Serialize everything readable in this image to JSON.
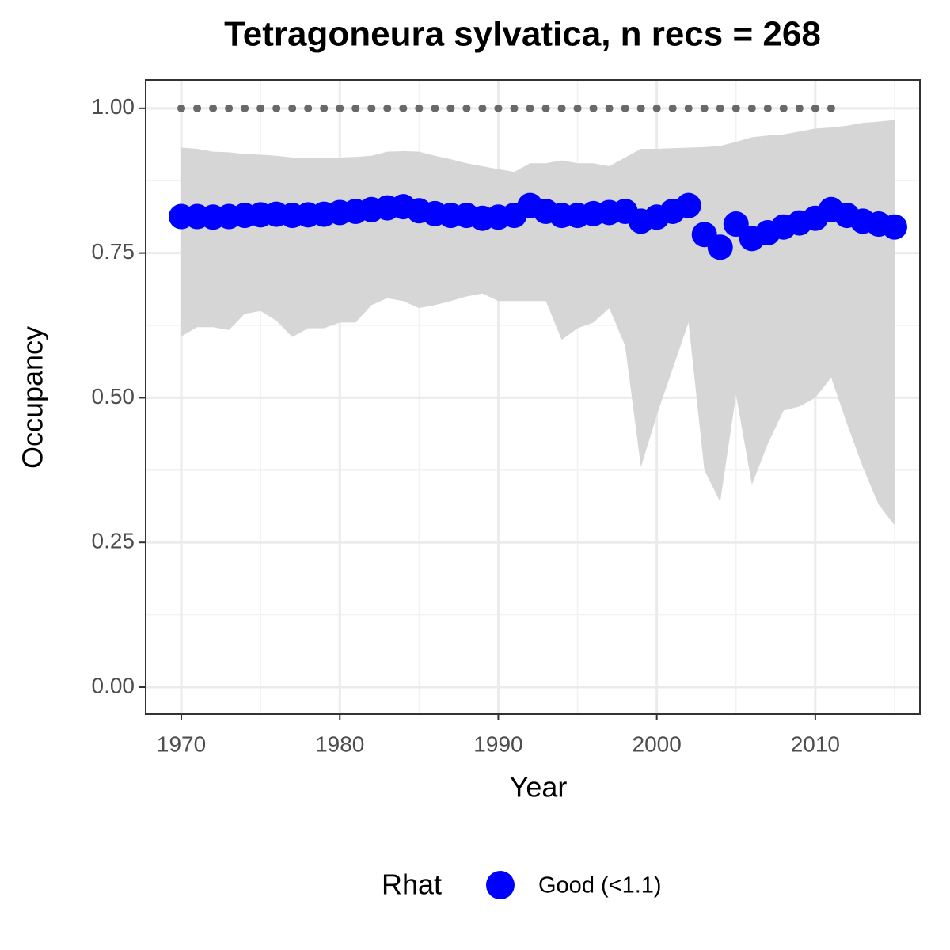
{
  "chart_data": {
    "type": "line",
    "title": "Tetragoneura sylvatica, n recs = 268",
    "x_label": "Year",
    "y_label": "Occupancy",
    "x": [
      1970,
      1971,
      1972,
      1973,
      1974,
      1975,
      1976,
      1977,
      1978,
      1979,
      1980,
      1981,
      1982,
      1983,
      1984,
      1985,
      1986,
      1987,
      1988,
      1989,
      1990,
      1991,
      1992,
      1993,
      1994,
      1995,
      1996,
      1997,
      1998,
      1999,
      2000,
      2001,
      2002,
      2003,
      2004,
      2005,
      2006,
      2007,
      2008,
      2009,
      2010,
      2011,
      2012,
      2013,
      2014,
      2015
    ],
    "series": [
      {
        "name": "Good (<1.1)",
        "color": "#0000ff",
        "values": [
          0.813,
          0.813,
          0.812,
          0.813,
          0.815,
          0.816,
          0.817,
          0.815,
          0.816,
          0.817,
          0.82,
          0.822,
          0.825,
          0.828,
          0.83,
          0.823,
          0.818,
          0.815,
          0.815,
          0.81,
          0.812,
          0.815,
          0.832,
          0.822,
          0.815,
          0.815,
          0.818,
          0.82,
          0.822,
          0.805,
          0.812,
          0.822,
          0.832,
          0.782,
          0.76,
          0.8,
          0.775,
          0.785,
          0.795,
          0.802,
          0.81,
          0.825,
          0.815,
          0.805,
          0.8,
          0.795
        ]
      }
    ],
    "band": {
      "upper": [
        0.932,
        0.93,
        0.925,
        0.924,
        0.921,
        0.92,
        0.918,
        0.915,
        0.915,
        0.915,
        0.915,
        0.916,
        0.918,
        0.925,
        0.926,
        0.925,
        0.918,
        0.912,
        0.905,
        0.9,
        0.895,
        0.89,
        0.905,
        0.905,
        0.91,
        0.905,
        0.905,
        0.9,
        0.915,
        0.93,
        0.93,
        0.931,
        0.932,
        0.933,
        0.935,
        0.942,
        0.95,
        0.953,
        0.955,
        0.96,
        0.965,
        0.967,
        0.97,
        0.975,
        0.977,
        0.98
      ],
      "lower": [
        0.606,
        0.622,
        0.622,
        0.617,
        0.645,
        0.65,
        0.633,
        0.605,
        0.62,
        0.62,
        0.63,
        0.63,
        0.66,
        0.672,
        0.667,
        0.655,
        0.66,
        0.667,
        0.675,
        0.68,
        0.667,
        0.667,
        0.667,
        0.667,
        0.6,
        0.62,
        0.63,
        0.655,
        0.59,
        0.38,
        0.47,
        0.55,
        0.63,
        0.375,
        0.32,
        0.505,
        0.35,
        0.42,
        0.478,
        0.485,
        0.5,
        0.535,
        0.455,
        0.38,
        0.315,
        0.28
      ],
      "color": "#d6d6d6"
    },
    "reference": {
      "color": "#696969",
      "x": [
        1970,
        1971,
        1972,
        1973,
        1974,
        1975,
        1976,
        1977,
        1978,
        1979,
        1980,
        1981,
        1982,
        1983,
        1984,
        1985,
        1986,
        1987,
        1988,
        1989,
        1990,
        1991,
        1992,
        1993,
        1994,
        1995,
        1996,
        1997,
        1998,
        1999,
        2000,
        2001,
        2002,
        2003,
        2004,
        2005,
        2006,
        2007,
        2008,
        2009,
        2010,
        2011
      ],
      "values": [
        1,
        1,
        1,
        1,
        1,
        1,
        1,
        1,
        1,
        1,
        1,
        1,
        1,
        1,
        1,
        1,
        1,
        1,
        1,
        1,
        1,
        1,
        1,
        1,
        1,
        1,
        1,
        1,
        1,
        1,
        1,
        1,
        1,
        1,
        1,
        1,
        1,
        1,
        1,
        1,
        1,
        1
      ]
    },
    "xlim": [
      1967.75,
      2016.6
    ],
    "ylim": [
      -0.0465,
      1.049
    ],
    "xticks": [
      1970,
      1980,
      1990,
      2000,
      2010
    ],
    "yticks": [
      {
        "value": 0,
        "label": "0.00"
      },
      {
        "value": 0.25,
        "label": "0.25"
      },
      {
        "value": 0.5,
        "label": "0.50"
      },
      {
        "value": 0.75,
        "label": "0.75"
      },
      {
        "value": 1,
        "label": "1.00"
      }
    ],
    "grid": true,
    "legend_title": "Rhat",
    "legend_position": "bottom"
  }
}
